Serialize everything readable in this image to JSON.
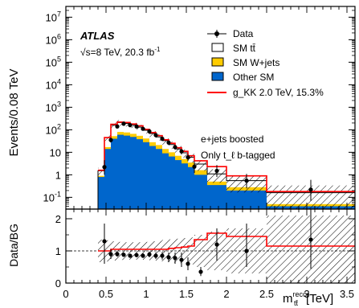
{
  "chart_data": [
    {
      "type": "bar",
      "log_y": true,
      "ylim": [
        0.03,
        30000000
      ],
      "xlim": [
        0,
        3.6
      ],
      "ylabel": "Events/0.08 TeV",
      "experiment": "ATLAS",
      "energy_lumi": "√s=8 TeV, 20.3 fb",
      "energy_lumi_sup": "-1",
      "selection": [
        "e+jets boosted",
        "Only t_ℓ b-tagged"
      ],
      "y_ticks": [
        {
          "value": 0.1,
          "base": "10",
          "exp": "-1"
        },
        {
          "value": 1,
          "base": "1",
          "exp": ""
        },
        {
          "value": 10,
          "base": "10",
          "exp": ""
        },
        {
          "value": 100,
          "base": "10",
          "exp": "2"
        },
        {
          "value": 1000,
          "base": "10",
          "exp": "3"
        },
        {
          "value": 10000,
          "base": "10",
          "exp": "4"
        },
        {
          "value": 100000,
          "base": "10",
          "exp": "5"
        },
        {
          "value": 1000000,
          "base": "10",
          "exp": "6"
        },
        {
          "value": 10000000,
          "base": "10",
          "exp": "7"
        }
      ],
      "bin_edges": [
        0.4,
        0.48,
        0.56,
        0.64,
        0.72,
        0.8,
        0.88,
        0.96,
        1.04,
        1.12,
        1.2,
        1.28,
        1.36,
        1.44,
        1.52,
        1.6,
        1.76,
        2.0,
        2.5,
        3.6
      ],
      "legend": {
        "data": "Data",
        "sm_ttbar": "SM tt̄",
        "sm_wjets": "SM W+jets",
        "other_sm": "Other SM",
        "signal": "g_KK 2.0 TeV, 15.3%"
      },
      "colors": {
        "ttbar": "#ffffff",
        "wjets": "#ffcc00",
        "other": "#0066cc",
        "signal": "#ff0000",
        "data": "#000000",
        "hatch": "#000000"
      },
      "stack": {
        "other_sm": [
          0.8,
          14,
          40,
          60,
          55,
          48,
          38,
          28,
          19,
          14,
          9,
          6.5,
          4.5,
          3.2,
          2.2,
          1.0,
          0.35,
          0.2,
          0.04
        ],
        "wjets_top": [
          0.9,
          17,
          52,
          80,
          76,
          66,
          54,
          41,
          28,
          21,
          14,
          10,
          7,
          5,
          3.5,
          1.6,
          0.5,
          0.28,
          0.05
        ],
        "total": [
          1.5,
          45,
          160,
          210,
          190,
          165,
          130,
          95,
          68,
          48,
          33,
          22,
          14,
          9.5,
          6,
          3.0,
          1.1,
          0.55,
          0.16
        ]
      },
      "signal_total": [
        1.6,
        45,
        175,
        220,
        210,
        180,
        150,
        105,
        75,
        55,
        36,
        25,
        16,
        11,
        7,
        4.2,
        2.3,
        0.9,
        0.18
      ],
      "data_points": [
        {
          "x": 0.48,
          "y": 2.2,
          "ylo": 1.0,
          "yhi": 4.5
        },
        {
          "x": 0.56,
          "y": 35,
          "ylo": 27,
          "yhi": 45
        },
        {
          "x": 0.64,
          "y": 140,
          "ylo": 125,
          "yhi": 155
        },
        {
          "x": 0.72,
          "y": 185,
          "ylo": 170,
          "yhi": 200
        },
        {
          "x": 0.8,
          "y": 160,
          "ylo": 148,
          "yhi": 172
        },
        {
          "x": 0.88,
          "y": 140,
          "ylo": 128,
          "yhi": 152
        },
        {
          "x": 0.96,
          "y": 110,
          "ylo": 100,
          "yhi": 120
        },
        {
          "x": 1.04,
          "y": 85,
          "ylo": 76,
          "yhi": 95
        },
        {
          "x": 1.12,
          "y": 58,
          "ylo": 50,
          "yhi": 66
        },
        {
          "x": 1.2,
          "y": 40,
          "ylo": 34,
          "yhi": 47
        },
        {
          "x": 1.28,
          "y": 27,
          "ylo": 22,
          "yhi": 33
        },
        {
          "x": 1.36,
          "y": 17,
          "ylo": 13,
          "yhi": 21
        },
        {
          "x": 1.44,
          "y": 11,
          "ylo": 8,
          "yhi": 14
        },
        {
          "x": 1.52,
          "y": 6,
          "ylo": 4,
          "yhi": 8.5
        },
        {
          "x": 1.6,
          "y": 2.3,
          "ylo": 1.2,
          "yhi": 4
        },
        {
          "x": 1.88,
          "y": 1.5,
          "ylo": 0.8,
          "yhi": 2.7
        },
        {
          "x": 2.25,
          "y": 0.55,
          "ylo": 0.25,
          "yhi": 1.1
        },
        {
          "x": 3.05,
          "y": 0.22,
          "ylo": 0.07,
          "yhi": 0.6
        }
      ],
      "x_ticks": [
        0,
        0.5,
        1,
        1.5,
        2,
        2.5,
        3,
        3.5
      ],
      "x_tick_labels": [
        "0",
        "0.5",
        "1",
        "1.5",
        "2",
        "2.5",
        "3",
        "3.5"
      ]
    },
    {
      "type": "scatter",
      "ylabel": "Data/BG",
      "ylim": [
        0,
        2.3
      ],
      "xlim": [
        0,
        3.6
      ],
      "y_ticks": [
        0,
        1,
        2
      ],
      "y_tick_labels": [
        "0",
        "1",
        "2"
      ],
      "xlabel_main": "m",
      "xlabel_sup": "reco",
      "xlabel_sub": "tt̄",
      "xlabel_unit": "[TeV]",
      "ratio_points": [
        {
          "x": 0.48,
          "y": 1.3,
          "ylo": 0.6,
          "yhi": 1.85
        },
        {
          "x": 0.56,
          "y": 0.9,
          "ylo": 0.75,
          "yhi": 1.05
        },
        {
          "x": 0.64,
          "y": 0.9,
          "ylo": 0.82,
          "yhi": 0.98
        },
        {
          "x": 0.72,
          "y": 0.88,
          "ylo": 0.82,
          "yhi": 0.95
        },
        {
          "x": 0.8,
          "y": 0.85,
          "ylo": 0.79,
          "yhi": 0.91
        },
        {
          "x": 0.88,
          "y": 0.87,
          "ylo": 0.8,
          "yhi": 0.94
        },
        {
          "x": 0.96,
          "y": 0.85,
          "ylo": 0.78,
          "yhi": 0.93
        },
        {
          "x": 1.04,
          "y": 0.89,
          "ylo": 0.8,
          "yhi": 0.98
        },
        {
          "x": 1.12,
          "y": 0.85,
          "ylo": 0.75,
          "yhi": 0.95
        },
        {
          "x": 1.2,
          "y": 0.85,
          "ylo": 0.73,
          "yhi": 0.97
        },
        {
          "x": 1.28,
          "y": 0.8,
          "ylo": 0.65,
          "yhi": 0.95
        },
        {
          "x": 1.36,
          "y": 0.78,
          "ylo": 0.6,
          "yhi": 0.95
        },
        {
          "x": 1.44,
          "y": 0.72,
          "ylo": 0.5,
          "yhi": 0.95
        },
        {
          "x": 1.52,
          "y": 0.6,
          "ylo": 0.4,
          "yhi": 0.8
        },
        {
          "x": 1.68,
          "y": 0.35,
          "ylo": 0.22,
          "yhi": 0.5
        },
        {
          "x": 1.88,
          "y": 1.2,
          "ylo": 0.7,
          "yhi": 1.7
        },
        {
          "x": 2.25,
          "y": 1.0,
          "ylo": 0.5,
          "yhi": 1.85
        },
        {
          "x": 3.05,
          "y": 1.35,
          "ylo": 0.45,
          "yhi": 2.3
        }
      ],
      "signal_ratio": [
        1.0,
        1.0,
        1.05,
        1.05,
        1.05,
        1.05,
        1.05,
        1.05,
        1.05,
        1.05,
        1.05,
        1.08,
        1.1,
        1.12,
        1.15,
        1.35,
        1.55,
        1.45,
        1.15
      ],
      "unc_band": [
        0.35,
        0.33,
        0.3,
        0.28,
        0.27,
        0.27,
        0.27,
        0.28,
        0.3,
        0.32,
        0.34,
        0.36,
        0.38,
        0.4,
        0.42,
        0.5,
        0.6,
        0.7,
        1.1
      ]
    }
  ]
}
